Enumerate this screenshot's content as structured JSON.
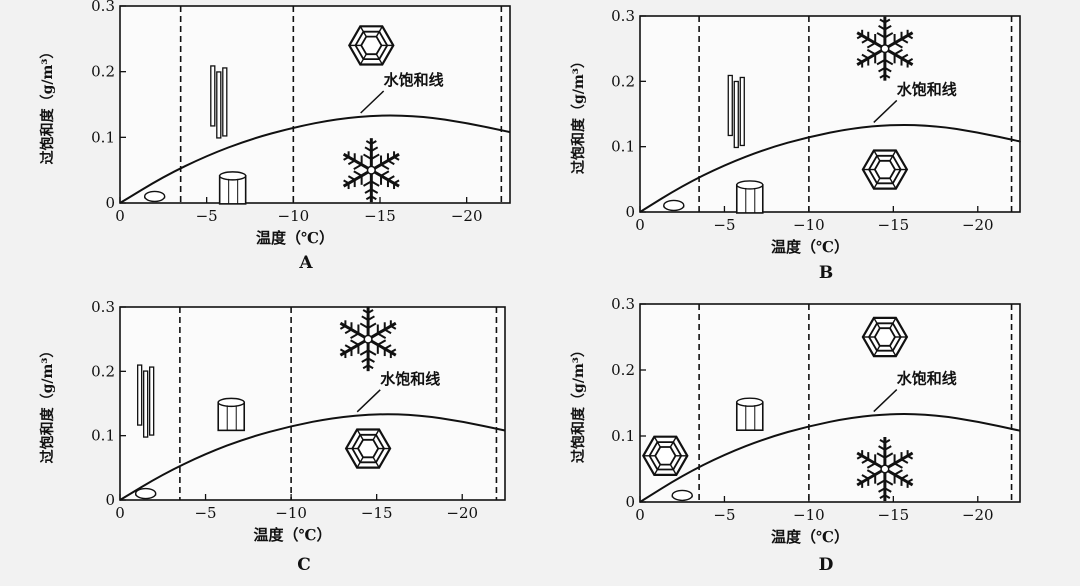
{
  "chart_data": [
    {
      "type": "line",
      "panel": "A",
      "xlabel": "温度（℃）",
      "ylabel": "过饱和度（g/m³）",
      "xlim": [
        0,
        -22.5
      ],
      "ylim": [
        0,
        0.3
      ],
      "x_ticks": [
        0,
        -5,
        -10,
        -15,
        -20
      ],
      "y_ticks": [
        0,
        0.1,
        0.2,
        0.3
      ],
      "x_tick_labels": [
        "0",
        "−5",
        "−10",
        "−15",
        "−20"
      ],
      "y_tick_labels": [
        "0",
        "0.1",
        "0.2",
        "0.3"
      ],
      "divider_temps": [
        -3.5,
        -10,
        -22
      ],
      "series": [
        {
          "name": "水饱和线",
          "x": [
            0,
            -2.5,
            -5,
            -7.5,
            -10,
            -12.5,
            -15,
            -17.5,
            -20,
            -22.5
          ],
          "y": [
            0,
            0.04,
            0.072,
            0.097,
            0.115,
            0.128,
            0.134,
            0.132,
            0.122,
            0.108
          ]
        }
      ],
      "crystals": [
        {
          "shape": "plate-icon",
          "x": -2,
          "y": 0.01
        },
        {
          "shape": "needle-icon",
          "x": -5.7,
          "y": 0.16
        },
        {
          "shape": "column-icon",
          "x": -6.5,
          "y": 0.02
        },
        {
          "shape": "hex-plate-icon",
          "x": -14.5,
          "y": 0.24
        },
        {
          "shape": "dendrite-icon",
          "x": -14.5,
          "y": 0.05
        }
      ]
    },
    {
      "type": "line",
      "panel": "B",
      "xlabel": "温度（℃）",
      "ylabel": "过饱和度（g/m³）",
      "xlim": [
        0,
        -22.5
      ],
      "ylim": [
        0,
        0.3
      ],
      "x_ticks": [
        0,
        -5,
        -10,
        -15,
        -20
      ],
      "y_ticks": [
        0,
        0.1,
        0.2,
        0.3
      ],
      "x_tick_labels": [
        "0",
        "−5",
        "−10",
        "−15",
        "−20"
      ],
      "y_tick_labels": [
        "0",
        "0.1",
        "0.2",
        "0.3"
      ],
      "divider_temps": [
        -3.5,
        -10,
        -22
      ],
      "series": [
        {
          "name": "水饱和线",
          "x": [
            0,
            -2.5,
            -5,
            -7.5,
            -10,
            -12.5,
            -15,
            -17.5,
            -20,
            -22.5
          ],
          "y": [
            0,
            0.04,
            0.072,
            0.097,
            0.115,
            0.128,
            0.134,
            0.132,
            0.122,
            0.108
          ]
        }
      ],
      "crystals": [
        {
          "shape": "plate-icon",
          "x": -2,
          "y": 0.01
        },
        {
          "shape": "needle-icon",
          "x": -5.7,
          "y": 0.16
        },
        {
          "shape": "column-icon",
          "x": -6.5,
          "y": 0.02
        },
        {
          "shape": "dendrite-icon",
          "x": -14.5,
          "y": 0.25
        },
        {
          "shape": "hex-plate-icon",
          "x": -14.5,
          "y": 0.065
        }
      ]
    },
    {
      "type": "line",
      "panel": "C",
      "xlabel": "温度（℃）",
      "ylabel": "过饱和度（g/m³）",
      "xlim": [
        0,
        -22.5
      ],
      "ylim": [
        0,
        0.3
      ],
      "x_ticks": [
        0,
        -5,
        -10,
        -15,
        -20
      ],
      "y_ticks": [
        0,
        0.1,
        0.2,
        0.3
      ],
      "x_tick_labels": [
        "0",
        "−5",
        "−10",
        "−15",
        "−20"
      ],
      "y_tick_labels": [
        "0",
        "0.1",
        "0.2",
        "0.3"
      ],
      "divider_temps": [
        -3.5,
        -10,
        -22
      ],
      "series": [
        {
          "name": "水饱和线",
          "x": [
            0,
            -2.5,
            -5,
            -7.5,
            -10,
            -12.5,
            -15,
            -17.5,
            -20,
            -22.5
          ],
          "y": [
            0,
            0.04,
            0.072,
            0.097,
            0.115,
            0.128,
            0.134,
            0.132,
            0.122,
            0.108
          ]
        }
      ],
      "crystals": [
        {
          "shape": "plate-icon",
          "x": -1.5,
          "y": 0.01
        },
        {
          "shape": "needle-icon",
          "x": -1.5,
          "y": 0.16
        },
        {
          "shape": "column-icon",
          "x": -6.5,
          "y": 0.13
        },
        {
          "shape": "dendrite-icon",
          "x": -14.5,
          "y": 0.25
        },
        {
          "shape": "hex-plate-icon",
          "x": -14.5,
          "y": 0.08
        }
      ]
    },
    {
      "type": "line",
      "panel": "D",
      "xlabel": "温度（℃）",
      "ylabel": "过饱和度（g/m³）",
      "xlim": [
        0,
        -22.5
      ],
      "ylim": [
        0,
        0.3
      ],
      "x_ticks": [
        0,
        -5,
        -10,
        -15,
        -20
      ],
      "y_ticks": [
        0,
        0.1,
        0.2,
        0.3
      ],
      "x_tick_labels": [
        "0",
        "−5",
        "−10",
        "−15",
        "−20"
      ],
      "y_tick_labels": [
        "0",
        "0.1",
        "0.2",
        "0.3"
      ],
      "divider_temps": [
        -3.5,
        -10,
        -22
      ],
      "series": [
        {
          "name": "水饱和线",
          "x": [
            0,
            -2.5,
            -5,
            -7.5,
            -10,
            -12.5,
            -15,
            -17.5,
            -20,
            -22.5
          ],
          "y": [
            0,
            0.04,
            0.072,
            0.097,
            0.115,
            0.128,
            0.134,
            0.132,
            0.122,
            0.108
          ]
        }
      ],
      "crystals": [
        {
          "shape": "hex-plate-icon",
          "x": -1.5,
          "y": 0.07
        },
        {
          "shape": "plate-icon",
          "x": -2.5,
          "y": 0.01
        },
        {
          "shape": "column-icon",
          "x": -6.5,
          "y": 0.13
        },
        {
          "shape": "hex-plate-icon",
          "x": -14.5,
          "y": 0.25
        },
        {
          "shape": "dendrite-icon",
          "x": -14.5,
          "y": 0.05
        }
      ]
    }
  ]
}
